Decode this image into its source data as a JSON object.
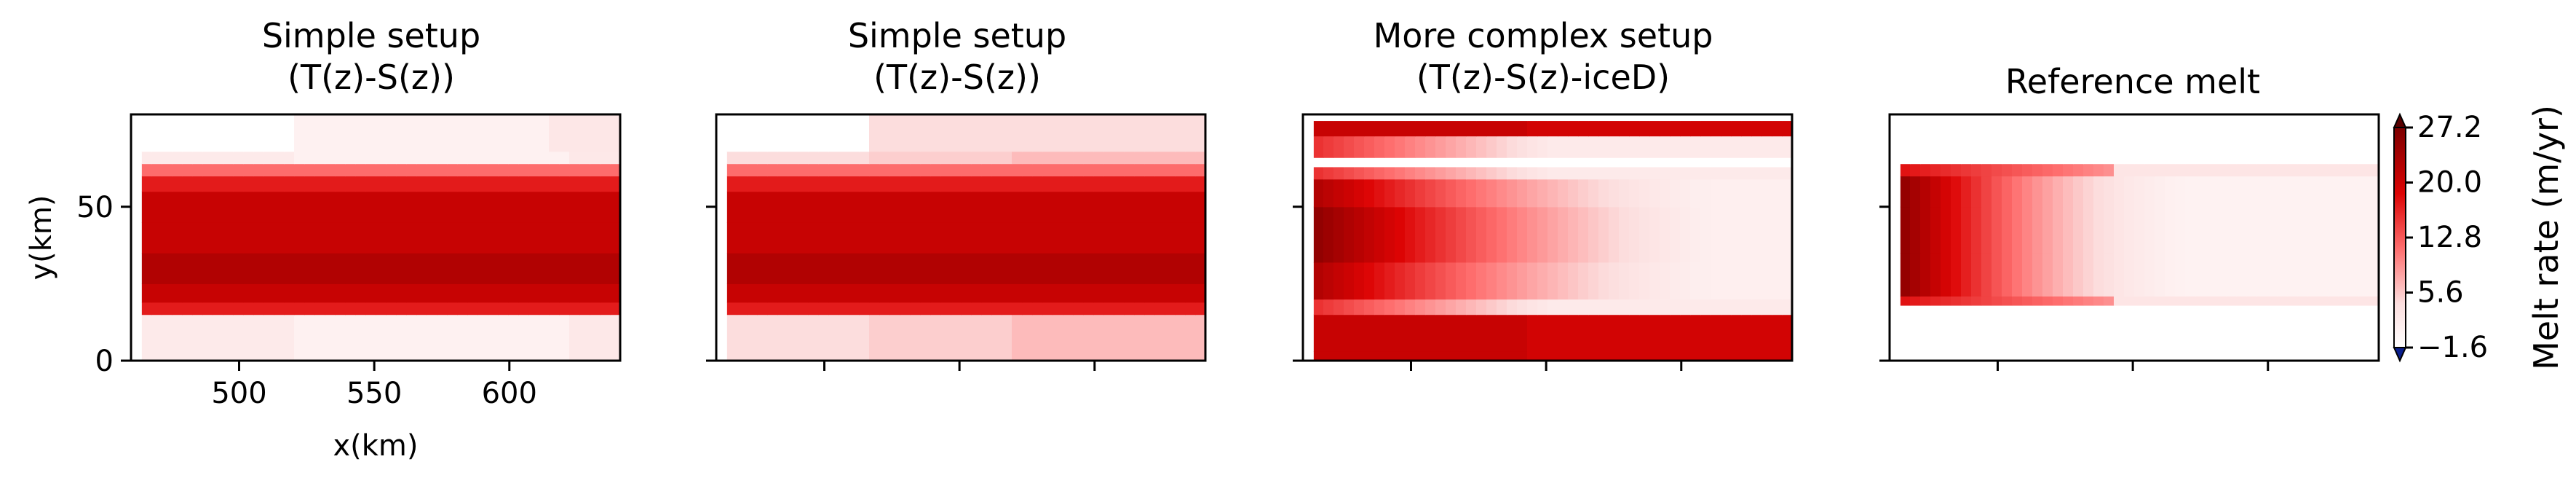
{
  "chart_data": [
    {
      "type": "heatmap",
      "title": "Simple setup\n(T(z)-S(z))",
      "xlabel": "x(km)",
      "ylabel": "y(km)",
      "xlim": [
        460,
        641
      ],
      "ylim": [
        0,
        80
      ],
      "xticks": [
        500,
        550,
        600
      ],
      "yticks": [
        0,
        50
      ],
      "show_xticklabels": true,
      "show_yticklabels": true,
      "front_x": [
        464,
        456
      ],
      "y_bands": [
        {
          "y": [
            0,
            15
          ],
          "mode": "low"
        },
        {
          "y": [
            15,
            19
          ],
          "mode": "inner"
        },
        {
          "y": [
            19,
            25
          ],
          "mode": "max"
        },
        {
          "y": [
            25,
            35
          ],
          "mode": "deep"
        },
        {
          "y": [
            35,
            45
          ],
          "mode": "max"
        },
        {
          "y": [
            45,
            55
          ],
          "mode": "max"
        },
        {
          "y": [
            55,
            60
          ],
          "mode": "inner"
        },
        {
          "y": [
            60,
            64
          ],
          "mode": "cap"
        },
        {
          "y": [
            64,
            68
          ],
          "mode": "low"
        },
        {
          "y": [
            68,
            80
          ],
          "mode": "top"
        }
      ]
    },
    {
      "type": "heatmap",
      "title": "Simple setup\n(T(z)-S(z))",
      "xlim": [
        460,
        641
      ],
      "ylim": [
        0,
        80
      ],
      "xticks": [
        500,
        550,
        600
      ],
      "yticks": [
        0,
        50
      ],
      "show_xticklabels": false,
      "show_yticklabels": false,
      "front_x": [
        464,
        456
      ],
      "y_bands": [
        {
          "y": [
            0,
            15
          ],
          "mode": "low2"
        },
        {
          "y": [
            15,
            19
          ],
          "mode": "inner"
        },
        {
          "y": [
            19,
            25
          ],
          "mode": "max"
        },
        {
          "y": [
            25,
            35
          ],
          "mode": "deep"
        },
        {
          "y": [
            35,
            45
          ],
          "mode": "max"
        },
        {
          "y": [
            45,
            55
          ],
          "mode": "max"
        },
        {
          "y": [
            55,
            60
          ],
          "mode": "inner"
        },
        {
          "y": [
            60,
            64
          ],
          "mode": "cap"
        },
        {
          "y": [
            64,
            68
          ],
          "mode": "low2"
        },
        {
          "y": [
            68,
            80
          ],
          "mode": "top2"
        }
      ]
    },
    {
      "type": "heatmap",
      "title": "More complex setup\n(T(z)-S(z)-iceD)",
      "xlim": [
        460,
        641
      ],
      "ylim": [
        0,
        80
      ],
      "xticks": [
        500,
        550,
        600
      ],
      "yticks": [
        0,
        50
      ],
      "show_xticklabels": false,
      "show_yticklabels": false,
      "front_x": [
        464,
        456
      ],
      "y_bands": [
        {
          "y": [
            0,
            3
          ],
          "mode": "edge"
        },
        {
          "y": [
            3,
            15
          ],
          "mode": "edge"
        },
        {
          "y": [
            15,
            20
          ],
          "mode": "complexlow"
        },
        {
          "y": [
            20,
            32
          ],
          "mode": "complex"
        },
        {
          "y": [
            32,
            50
          ],
          "mode": "complex"
        },
        {
          "y": [
            50,
            59
          ],
          "mode": "complex"
        },
        {
          "y": [
            59,
            63
          ],
          "mode": "complexlow"
        },
        {
          "y": [
            63,
            66
          ],
          "mode": "white"
        },
        {
          "y": [
            66,
            73
          ],
          "mode": "complexlow"
        },
        {
          "y": [
            73,
            78
          ],
          "mode": "edge"
        },
        {
          "y": [
            78,
            80
          ],
          "mode": "white"
        }
      ]
    },
    {
      "type": "heatmap",
      "title": "Reference melt",
      "xlim": [
        460,
        641
      ],
      "ylim": [
        0,
        80
      ],
      "xticks": [
        500,
        550,
        600
      ],
      "yticks": [
        0,
        50
      ],
      "show_xticklabels": false,
      "show_yticklabels": false,
      "front_x": [
        464,
        456
      ],
      "y_bands": [
        {
          "y": [
            0,
            18
          ],
          "mode": "white"
        },
        {
          "y": [
            18,
            21
          ],
          "mode": "refedge"
        },
        {
          "y": [
            21,
            35
          ],
          "mode": "ref"
        },
        {
          "y": [
            35,
            50
          ],
          "mode": "ref"
        },
        {
          "y": [
            50,
            60
          ],
          "mode": "ref"
        },
        {
          "y": [
            60,
            64
          ],
          "mode": "refedge"
        },
        {
          "y": [
            64,
            80
          ],
          "mode": "white"
        }
      ]
    }
  ],
  "colorbar": {
    "label": "Melt rate (m/yr)",
    "vmin": -1.6,
    "vmax": 27.2,
    "ticks": [
      "27.2",
      "20.0",
      "12.8",
      "5.6",
      "−1.6"
    ],
    "tick_values": [
      27.2,
      20.0,
      12.8,
      5.6,
      -1.6
    ],
    "colormap": "white-to-darkred",
    "under_color": "#0a1f8f",
    "over_color": "#5a0000",
    "extend": "both"
  },
  "colors": {
    "white": "#ffffff",
    "light": "#fcdede",
    "mid": "#fe6e6e",
    "red": "#dc0404",
    "dark": "#7d0000"
  }
}
